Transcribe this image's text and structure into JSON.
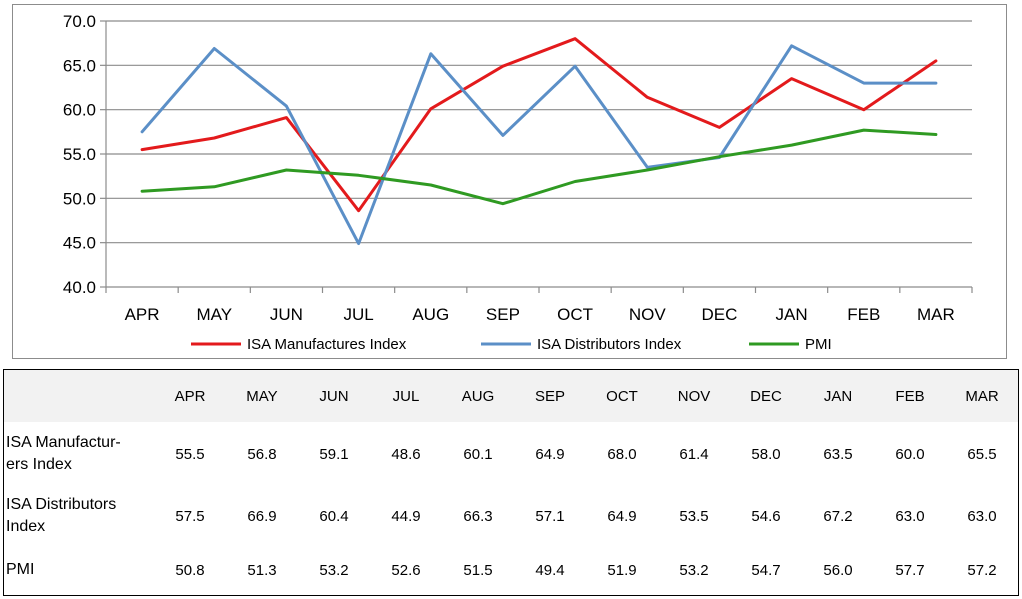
{
  "chart_data": {
    "type": "line",
    "categories": [
      "APR",
      "MAY",
      "JUN",
      "JUL",
      "AUG",
      "SEP",
      "OCT",
      "NOV",
      "DEC",
      "JAN",
      "FEB",
      "MAR"
    ],
    "ylim": [
      40.0,
      70.0
    ],
    "yticks": [
      "40.0",
      "45.0",
      "50.0",
      "55.0",
      "60.0",
      "65.0",
      "70.0"
    ],
    "grid": true,
    "legend_position": "bottom",
    "series": [
      {
        "name": "ISA Manufactures Index",
        "color": "#e31a1c",
        "values": [
          55.5,
          56.8,
          59.1,
          48.6,
          60.1,
          64.9,
          68.0,
          61.4,
          58.0,
          63.5,
          60.0,
          65.5
        ]
      },
      {
        "name": "ISA Distributors Index",
        "color": "#5b8fc7",
        "values": [
          57.5,
          66.9,
          60.4,
          44.9,
          66.3,
          57.1,
          64.9,
          53.5,
          54.6,
          67.2,
          63.0,
          63.0
        ]
      },
      {
        "name": "PMI",
        "color": "#2f9a22",
        "values": [
          50.8,
          51.3,
          53.2,
          52.6,
          51.5,
          49.4,
          51.9,
          53.2,
          54.7,
          56.0,
          57.7,
          57.2
        ]
      }
    ]
  },
  "table": {
    "columns": [
      "APR",
      "MAY",
      "JUN",
      "JUL",
      "AUG",
      "SEP",
      "OCT",
      "NOV",
      "DEC",
      "JAN",
      "FEB",
      "MAR"
    ],
    "rows": [
      {
        "label_line1": "ISA Manufactur-",
        "label_line2": "ers Index",
        "values": [
          "55.5",
          "56.8",
          "59.1",
          "48.6",
          "60.1",
          "64.9",
          "68.0",
          "61.4",
          "58.0",
          "63.5",
          "60.0",
          "65.5"
        ]
      },
      {
        "label_line1": "ISA Distributors",
        "label_line2": "Index",
        "values": [
          "57.5",
          "66.9",
          "60.4",
          "44.9",
          "66.3",
          "57.1",
          "64.9",
          "53.5",
          "54.6",
          "67.2",
          "63.0",
          "63.0"
        ]
      },
      {
        "label_line1": "PMI",
        "label_line2": "",
        "values": [
          "50.8",
          "51.3",
          "53.2",
          "52.6",
          "51.5",
          "49.4",
          "51.9",
          "53.2",
          "54.7",
          "56.0",
          "57.7",
          "57.2"
        ]
      }
    ]
  }
}
